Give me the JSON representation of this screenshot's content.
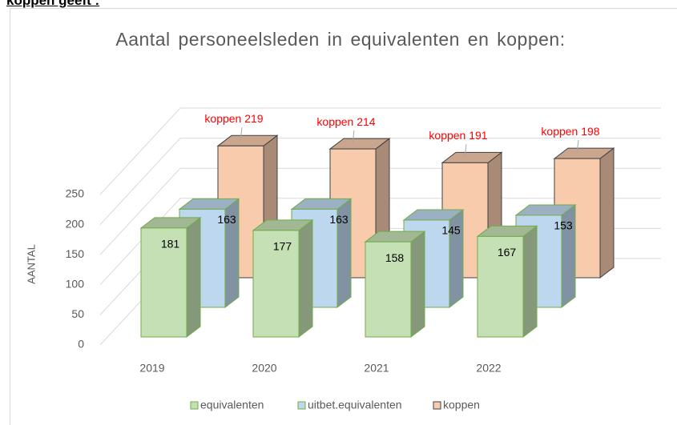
{
  "heading": "koppen geeft :",
  "chart_data": {
    "type": "bar3d",
    "title": "Aantal personeelsleden in equivalenten en koppen:",
    "y_label": "AANTAL",
    "categories": [
      "2019",
      "2020",
      "2021",
      "2022"
    ],
    "series": [
      {
        "name": "equivalenten",
        "color": "#c5e0b4",
        "edgecolor": "#70ad47",
        "values": [
          181,
          177,
          158,
          167
        ]
      },
      {
        "name": "uitbet.equivalenten",
        "color": "#bdd7ee",
        "edgecolor": "#70ad47",
        "values": [
          163,
          163,
          145,
          153
        ]
      },
      {
        "name": "koppen",
        "color": "#f8cbad",
        "edgecolor": "#404040",
        "values": [
          219,
          214,
          191,
          198
        ],
        "value_labels": [
          "koppen 219",
          "koppen 214",
          "koppen 191",
          "koppen 198"
        ]
      }
    ],
    "ylim": [
      0,
      250
    ],
    "yticks": [
      0,
      50,
      100,
      150,
      200,
      250
    ],
    "grid": true,
    "legend": "bottom"
  }
}
